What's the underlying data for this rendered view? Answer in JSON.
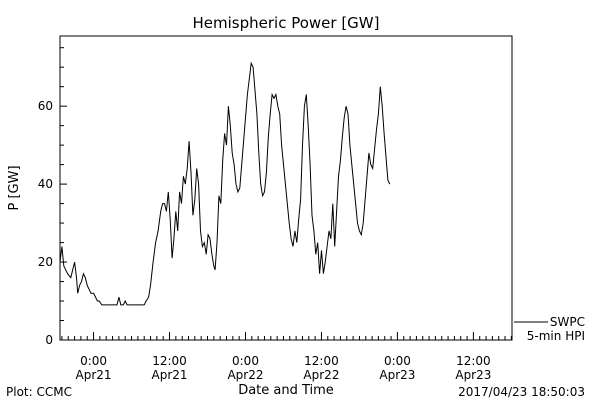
{
  "chart_data": {
    "type": "line",
    "title": "Hemispheric Power [GW]",
    "xlabel": "Date and Time",
    "ylabel": "P [GW]",
    "x_unit": "hours from 2017-04-21 00:00 UT",
    "xlim": [
      -5.3,
      66.1
    ],
    "ylim": [
      0,
      78
    ],
    "x_ticks": [
      {
        "value": 0,
        "line1": "0:00",
        "line2": "Apr21"
      },
      {
        "value": 12,
        "line1": "12:00",
        "line2": "Apr21"
      },
      {
        "value": 24,
        "line1": "0:00",
        "line2": "Apr22"
      },
      {
        "value": 36,
        "line1": "12:00",
        "line2": "Apr22"
      },
      {
        "value": 48,
        "line1": "0:00",
        "line2": "Apr23"
      },
      {
        "value": 60,
        "line1": "12:00",
        "line2": "Apr23"
      }
    ],
    "y_ticks": [
      0,
      20,
      40,
      60
    ],
    "legend": {
      "position": "right, below plot frame",
      "items": [
        "SWPC",
        "5-min HPI"
      ]
    },
    "series": [
      {
        "name": "5-min HPI",
        "color": "#000000",
        "points": [
          [
            -5.3,
            20
          ],
          [
            -5.0,
            24
          ],
          [
            -4.7,
            19
          ],
          [
            -4.4,
            18
          ],
          [
            -4.1,
            17
          ],
          [
            -3.6,
            16
          ],
          [
            -3.3,
            18
          ],
          [
            -3.0,
            20
          ],
          [
            -2.7,
            16
          ],
          [
            -2.5,
            12
          ],
          [
            -2.2,
            14
          ],
          [
            -1.9,
            15
          ],
          [
            -1.6,
            17
          ],
          [
            -1.3,
            16
          ],
          [
            -1.0,
            14
          ],
          [
            -0.7,
            13
          ],
          [
            -0.4,
            12
          ],
          [
            0.0,
            12
          ],
          [
            0.3,
            11
          ],
          [
            0.6,
            10
          ],
          [
            0.9,
            10
          ],
          [
            1.3,
            9
          ],
          [
            2.0,
            9
          ],
          [
            2.7,
            9
          ],
          [
            3.3,
            9
          ],
          [
            3.7,
            9
          ],
          [
            4.0,
            11
          ],
          [
            4.3,
            9
          ],
          [
            4.7,
            9
          ],
          [
            5.0,
            10
          ],
          [
            5.3,
            9
          ],
          [
            6.0,
            9
          ],
          [
            7.0,
            9
          ],
          [
            7.7,
            9
          ],
          [
            8.0,
            9
          ],
          [
            8.3,
            10
          ],
          [
            8.7,
            11
          ],
          [
            9.0,
            14
          ],
          [
            9.4,
            20
          ],
          [
            9.8,
            25
          ],
          [
            10.2,
            28
          ],
          [
            10.6,
            33
          ],
          [
            10.9,
            35
          ],
          [
            11.2,
            35
          ],
          [
            11.5,
            33
          ],
          [
            11.8,
            38
          ],
          [
            12.1,
            31
          ],
          [
            12.4,
            21
          ],
          [
            12.7,
            26
          ],
          [
            13.0,
            33
          ],
          [
            13.3,
            28
          ],
          [
            13.6,
            38
          ],
          [
            13.9,
            35
          ],
          [
            14.2,
            42
          ],
          [
            14.5,
            40
          ],
          [
            14.8,
            44
          ],
          [
            15.1,
            51
          ],
          [
            15.4,
            43
          ],
          [
            15.7,
            32
          ],
          [
            16.0,
            36
          ],
          [
            16.3,
            44
          ],
          [
            16.6,
            40
          ],
          [
            16.9,
            28
          ],
          [
            17.2,
            24
          ],
          [
            17.5,
            25
          ],
          [
            17.8,
            22
          ],
          [
            18.1,
            27
          ],
          [
            18.4,
            26
          ],
          [
            18.7,
            22
          ],
          [
            19.0,
            19
          ],
          [
            19.2,
            18
          ],
          [
            19.5,
            25
          ],
          [
            19.8,
            37
          ],
          [
            20.1,
            35
          ],
          [
            20.4,
            46
          ],
          [
            20.7,
            53
          ],
          [
            21.0,
            50
          ],
          [
            21.3,
            60
          ],
          [
            21.6,
            55
          ],
          [
            21.9,
            48
          ],
          [
            22.2,
            45
          ],
          [
            22.5,
            40
          ],
          [
            22.8,
            38
          ],
          [
            23.1,
            39
          ],
          [
            23.4,
            45
          ],
          [
            23.7,
            51
          ],
          [
            24.0,
            57
          ],
          [
            24.3,
            63
          ],
          [
            24.6,
            67
          ],
          [
            24.9,
            71
          ],
          [
            25.2,
            70
          ],
          [
            25.5,
            64
          ],
          [
            25.8,
            58
          ],
          [
            26.1,
            48
          ],
          [
            26.4,
            40
          ],
          [
            26.7,
            37
          ],
          [
            27.0,
            38
          ],
          [
            27.3,
            43
          ],
          [
            27.6,
            52
          ],
          [
            27.9,
            58
          ],
          [
            28.2,
            63
          ],
          [
            28.5,
            62
          ],
          [
            28.8,
            63
          ],
          [
            29.1,
            60
          ],
          [
            29.4,
            58
          ],
          [
            29.7,
            50
          ],
          [
            30.0,
            45
          ],
          [
            30.3,
            40
          ],
          [
            30.6,
            35
          ],
          [
            30.9,
            30
          ],
          [
            31.2,
            26
          ],
          [
            31.5,
            24
          ],
          [
            31.8,
            28
          ],
          [
            32.1,
            25
          ],
          [
            32.4,
            31
          ],
          [
            32.7,
            36
          ],
          [
            33.0,
            50
          ],
          [
            33.3,
            60
          ],
          [
            33.6,
            63
          ],
          [
            33.9,
            55
          ],
          [
            34.2,
            45
          ],
          [
            34.5,
            32
          ],
          [
            34.8,
            28
          ],
          [
            35.1,
            22
          ],
          [
            35.4,
            25
          ],
          [
            35.7,
            17
          ],
          [
            36.0,
            23
          ],
          [
            36.3,
            17
          ],
          [
            36.6,
            20
          ],
          [
            36.9,
            24
          ],
          [
            37.2,
            28
          ],
          [
            37.5,
            26
          ],
          [
            37.8,
            35
          ],
          [
            38.1,
            24
          ],
          [
            38.4,
            33
          ],
          [
            38.7,
            42
          ],
          [
            39.0,
            46
          ],
          [
            39.3,
            52
          ],
          [
            39.6,
            57
          ],
          [
            39.9,
            60
          ],
          [
            40.2,
            58
          ],
          [
            40.5,
            50
          ],
          [
            40.8,
            45
          ],
          [
            41.1,
            40
          ],
          [
            41.4,
            35
          ],
          [
            41.7,
            30
          ],
          [
            42.0,
            28
          ],
          [
            42.3,
            27
          ],
          [
            42.6,
            30
          ],
          [
            42.9,
            36
          ],
          [
            43.2,
            42
          ],
          [
            43.5,
            48
          ],
          [
            43.8,
            45
          ],
          [
            44.1,
            44
          ],
          [
            44.4,
            49
          ],
          [
            44.7,
            54
          ],
          [
            45.0,
            58
          ],
          [
            45.3,
            65
          ],
          [
            45.6,
            60
          ],
          [
            45.9,
            53
          ],
          [
            46.2,
            47
          ],
          [
            46.5,
            41
          ],
          [
            46.8,
            40
          ]
        ]
      }
    ]
  },
  "footer": {
    "left": "Plot: CCMC",
    "right": "2017/04/23 18:50:03"
  }
}
